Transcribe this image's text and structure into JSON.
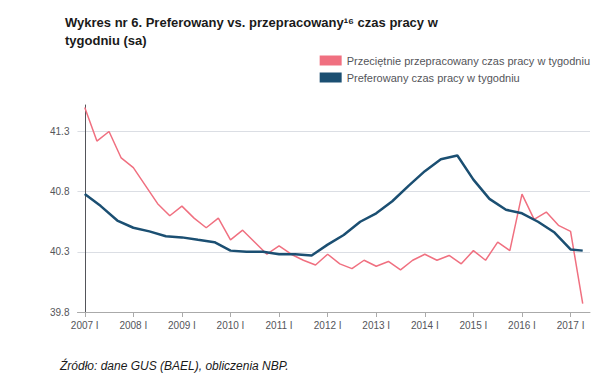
{
  "chart_data": {
    "type": "line",
    "title": "Wykres nr 6. Preferowany vs. przepracowany¹⁶ czas pracy w\ntygodniu (sa)",
    "annotations": [
      "Źródło: dane GUS (BAEL), obliczenia NBP."
    ],
    "xlim": [
      -0.15,
      10.4
    ],
    "xticks": [
      {
        "value": 0,
        "label": "2007 I"
      },
      {
        "value": 1,
        "label": "2008 I"
      },
      {
        "value": 2,
        "label": "2009 I"
      },
      {
        "value": 3,
        "label": "2010 I"
      },
      {
        "value": 4,
        "label": "2011 I"
      },
      {
        "value": 5,
        "label": "2012 I"
      },
      {
        "value": 6,
        "label": "2013 I"
      },
      {
        "value": 7,
        "label": "2014 I"
      },
      {
        "value": 8,
        "label": "2015 I"
      },
      {
        "value": 9,
        "label": "2016 I"
      },
      {
        "value": 10,
        "label": "2017 I"
      }
    ],
    "ylim": [
      39.8,
      41.52
    ],
    "yticks": [
      39.8,
      40.3,
      40.8,
      41.3
    ],
    "grid": "y",
    "legend": "upper right",
    "series": [
      {
        "name": "Przeciętnie przepracowany czas pracy w tygodniu",
        "color": "#f07080",
        "x": [
          0,
          0.25,
          0.5,
          0.75,
          1.0,
          1.25,
          1.5,
          1.75,
          2.0,
          2.25,
          2.5,
          2.75,
          3.0,
          3.25,
          3.5,
          3.75,
          4.0,
          4.25,
          4.5,
          4.75,
          5.0,
          5.25,
          5.5,
          5.75,
          6.0,
          6.25,
          6.5,
          6.75,
          7.0,
          7.25,
          7.5,
          7.75,
          8.0,
          8.25,
          8.5,
          8.75,
          9.0,
          9.25,
          9.5,
          9.75,
          10.0,
          10.25
        ],
        "values": [
          41.5,
          41.22,
          41.3,
          41.08,
          41.0,
          40.85,
          40.7,
          40.6,
          40.68,
          40.58,
          40.5,
          40.58,
          40.4,
          40.48,
          40.38,
          40.28,
          40.35,
          40.28,
          40.23,
          40.19,
          40.28,
          40.2,
          40.16,
          40.23,
          40.18,
          40.22,
          40.15,
          40.23,
          40.28,
          40.23,
          40.27,
          40.2,
          40.31,
          40.23,
          40.38,
          40.31,
          40.78,
          40.57,
          40.63,
          40.52,
          40.47,
          39.87
        ]
      },
      {
        "name": "Preferowany czas pracy w tygodniu",
        "color": "#1b4f72",
        "x": [
          0,
          0.33,
          0.67,
          1.0,
          1.33,
          1.67,
          2.0,
          2.33,
          2.67,
          3.0,
          3.33,
          3.67,
          4.0,
          4.33,
          4.67,
          5.0,
          5.33,
          5.67,
          6.0,
          6.33,
          6.67,
          7.0,
          7.33,
          7.67,
          8.0,
          8.33,
          8.67,
          9.0,
          9.33,
          9.67,
          10.0,
          10.25
        ],
        "values": [
          40.78,
          40.68,
          40.56,
          40.5,
          40.47,
          40.43,
          40.42,
          40.4,
          40.38,
          40.31,
          40.3,
          40.3,
          40.28,
          40.28,
          40.27,
          40.36,
          40.44,
          40.55,
          40.62,
          40.72,
          40.85,
          40.97,
          41.07,
          41.1,
          40.9,
          40.74,
          40.65,
          40.62,
          40.55,
          40.46,
          40.32,
          40.31
        ]
      }
    ]
  }
}
